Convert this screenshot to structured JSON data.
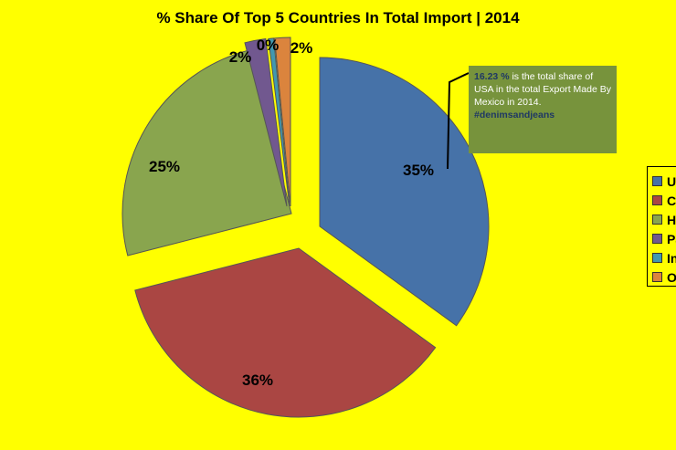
{
  "chart_data": {
    "type": "pie",
    "title": "% Share Of Top 5 Countries In Total Import | 2014",
    "exploded": true,
    "slices": [
      {
        "legend": "US",
        "value": 35,
        "label": "35%",
        "color": "#4672a8"
      },
      {
        "legend": "Ch",
        "value": 36,
        "label": "36%",
        "color": "#aa4643"
      },
      {
        "legend": "Ho",
        "value": 25,
        "label": "25%",
        "color": "#89a54e"
      },
      {
        "legend": "Pa",
        "value": 2,
        "label": "2%",
        "color": "#71588f"
      },
      {
        "legend": "In",
        "value": 0.5,
        "label": "0%",
        "color": "#4198af"
      },
      {
        "legend": "O",
        "value": 1.5,
        "label": "2%",
        "color": "#db843d"
      }
    ],
    "legend_position": "right"
  },
  "callout": {
    "highlight": "16.23 %",
    "text": " is the total share of USA in the total Export Made By Mexico in 2014.",
    "hashtag": "#denimsandjeans"
  }
}
